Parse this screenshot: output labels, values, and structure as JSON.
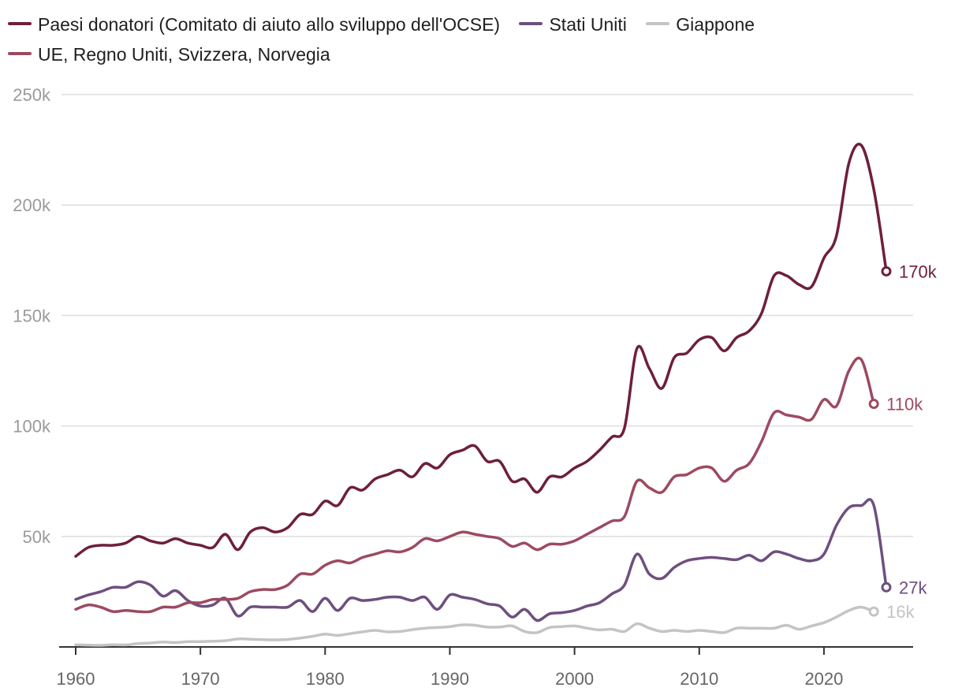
{
  "colors": {
    "ocse": "#6e1f3b",
    "usa": "#6e4f7e",
    "giappone": "#c4c4c4",
    "ue": "#9c4a61",
    "grid": "#dedede",
    "tick": "#9a9a9a",
    "axis": "#333333"
  },
  "chart_data": {
    "type": "line",
    "title": "",
    "xlabel": "",
    "ylabel": "",
    "xlim": [
      1960,
      2025
    ],
    "ylim": [
      0,
      250000
    ],
    "x_ticks": [
      1960,
      1970,
      1980,
      1990,
      2000,
      2010,
      2020
    ],
    "x_tick_labels": [
      "1960",
      "1970",
      "1980",
      "1990",
      "2000",
      "2010",
      "2020"
    ],
    "y_ticks": [
      50000,
      100000,
      150000,
      200000,
      250000
    ],
    "y_tick_labels": [
      "50k",
      "100k",
      "150k",
      "200k",
      "250k"
    ],
    "grid": "horizontal",
    "legend_placement": "top",
    "series": [
      {
        "key": "ocse",
        "name": "Paesi donatori (Comitato di aiuto allo sviluppo dell'OCSE)",
        "end_label": "170k",
        "x": [
          1960,
          1961,
          1962,
          1963,
          1964,
          1965,
          1966,
          1967,
          1968,
          1969,
          1970,
          1971,
          1972,
          1973,
          1974,
          1975,
          1976,
          1977,
          1978,
          1979,
          1980,
          1981,
          1982,
          1983,
          1984,
          1985,
          1986,
          1987,
          1988,
          1989,
          1990,
          1991,
          1992,
          1993,
          1994,
          1995,
          1996,
          1997,
          1998,
          1999,
          2000,
          2001,
          2002,
          2003,
          2004,
          2005,
          2006,
          2007,
          2008,
          2009,
          2010,
          2011,
          2012,
          2013,
          2014,
          2015,
          2016,
          2017,
          2018,
          2019,
          2020,
          2021,
          2022,
          2023,
          2024,
          2025
        ],
        "y": [
          41000,
          45000,
          46000,
          46000,
          47000,
          50000,
          48000,
          47000,
          49000,
          47000,
          46000,
          45000,
          51000,
          44000,
          52000,
          54000,
          52000,
          54000,
          60000,
          60000,
          66000,
          64000,
          72000,
          71000,
          76000,
          78000,
          80000,
          77000,
          83000,
          81000,
          87000,
          89000,
          91000,
          84000,
          84000,
          75000,
          76000,
          70000,
          77000,
          77000,
          81000,
          84000,
          89000,
          95000,
          99000,
          135000,
          126000,
          117000,
          131000,
          133000,
          139000,
          140000,
          134000,
          140000,
          143000,
          151000,
          168000,
          168000,
          164000,
          163000,
          176000,
          186000,
          219000,
          227000,
          207000,
          170000
        ]
      },
      {
        "key": "ue",
        "name": "UE, Regno Uniti, Svizzera, Norvegia",
        "end_label": "110k",
        "x": [
          1960,
          1961,
          1962,
          1963,
          1964,
          1965,
          1966,
          1967,
          1968,
          1969,
          1970,
          1971,
          1972,
          1973,
          1974,
          1975,
          1976,
          1977,
          1978,
          1979,
          1980,
          1981,
          1982,
          1983,
          1984,
          1985,
          1986,
          1987,
          1988,
          1989,
          1990,
          1991,
          1992,
          1993,
          1994,
          1995,
          1996,
          1997,
          1998,
          1999,
          2000,
          2001,
          2002,
          2003,
          2004,
          2005,
          2006,
          2007,
          2008,
          2009,
          2010,
          2011,
          2012,
          2013,
          2014,
          2015,
          2016,
          2017,
          2018,
          2019,
          2020,
          2021,
          2022,
          2023,
          2024
        ],
        "y": [
          17000,
          19000,
          18000,
          16000,
          16500,
          16000,
          16000,
          18000,
          18000,
          20000,
          20000,
          21500,
          21500,
          22000,
          25000,
          26000,
          26000,
          28000,
          33000,
          33000,
          37000,
          39000,
          38000,
          40500,
          42000,
          43500,
          43000,
          45000,
          49000,
          48000,
          50000,
          52000,
          51000,
          50000,
          49000,
          45500,
          47000,
          44000,
          46500,
          46500,
          48000,
          51000,
          54000,
          57000,
          59000,
          75000,
          72000,
          70000,
          77000,
          78000,
          81000,
          81000,
          75000,
          80000,
          83000,
          93000,
          106000,
          105000,
          104000,
          103000,
          112000,
          109000,
          125000,
          130000,
          110000
        ]
      },
      {
        "key": "usa",
        "name": "Stati Uniti",
        "end_label": "27k",
        "x": [
          1960,
          1961,
          1962,
          1963,
          1964,
          1965,
          1966,
          1967,
          1968,
          1969,
          1970,
          1971,
          1972,
          1973,
          1974,
          1975,
          1976,
          1977,
          1978,
          1979,
          1980,
          1981,
          1982,
          1983,
          1984,
          1985,
          1986,
          1987,
          1988,
          1989,
          1990,
          1991,
          1992,
          1993,
          1994,
          1995,
          1996,
          1997,
          1998,
          1999,
          2000,
          2001,
          2002,
          2003,
          2004,
          2005,
          2006,
          2007,
          2008,
          2009,
          2010,
          2011,
          2012,
          2013,
          2014,
          2015,
          2016,
          2017,
          2018,
          2019,
          2020,
          2021,
          2022,
          2023,
          2024,
          2025
        ],
        "y": [
          21500,
          23500,
          25000,
          27000,
          27000,
          29500,
          28000,
          23000,
          25500,
          21000,
          18500,
          19000,
          22000,
          14000,
          18000,
          18000,
          18000,
          18000,
          21000,
          16000,
          22000,
          16500,
          22000,
          21000,
          21500,
          22500,
          22500,
          21000,
          22500,
          17000,
          23500,
          22500,
          21500,
          19500,
          18500,
          13500,
          17000,
          12000,
          15000,
          15500,
          16500,
          18500,
          20000,
          24000,
          28000,
          42000,
          33000,
          31000,
          36000,
          39000,
          40000,
          40500,
          40000,
          39500,
          41500,
          39000,
          43000,
          42000,
          40000,
          39000,
          42000,
          55000,
          63000,
          64000,
          64000,
          27000
        ]
      },
      {
        "key": "giappone",
        "name": "Giappone",
        "end_label": "16k",
        "x": [
          1960,
          1961,
          1962,
          1963,
          1964,
          1965,
          1966,
          1967,
          1968,
          1969,
          1970,
          1971,
          1972,
          1973,
          1974,
          1975,
          1976,
          1977,
          1978,
          1979,
          1980,
          1981,
          1982,
          1983,
          1984,
          1985,
          1986,
          1987,
          1988,
          1989,
          1990,
          1991,
          1992,
          1993,
          1994,
          1995,
          1996,
          1997,
          1998,
          1999,
          2000,
          2001,
          2002,
          2003,
          2004,
          2005,
          2006,
          2007,
          2008,
          2009,
          2010,
          2011,
          2012,
          2013,
          2014,
          2015,
          2016,
          2017,
          2018,
          2019,
          2020,
          2021,
          2022,
          2023,
          2024
        ],
        "y": [
          1000,
          800,
          700,
          1000,
          900,
          1500,
          1800,
          2200,
          2000,
          2400,
          2400,
          2600,
          2800,
          3600,
          3500,
          3300,
          3200,
          3400,
          4000,
          4800,
          5800,
          5200,
          6000,
          6800,
          7500,
          6800,
          7000,
          7800,
          8500,
          8800,
          9200,
          10000,
          9800,
          9000,
          9000,
          9500,
          7000,
          6500,
          8800,
          9200,
          9500,
          8500,
          7700,
          8000,
          7000,
          10500,
          8500,
          7000,
          7500,
          7000,
          7500,
          7000,
          6500,
          8500,
          8500,
          8500,
          8500,
          9800,
          8000,
          9500,
          11000,
          13500,
          16500,
          18000,
          16000
        ]
      }
    ]
  }
}
